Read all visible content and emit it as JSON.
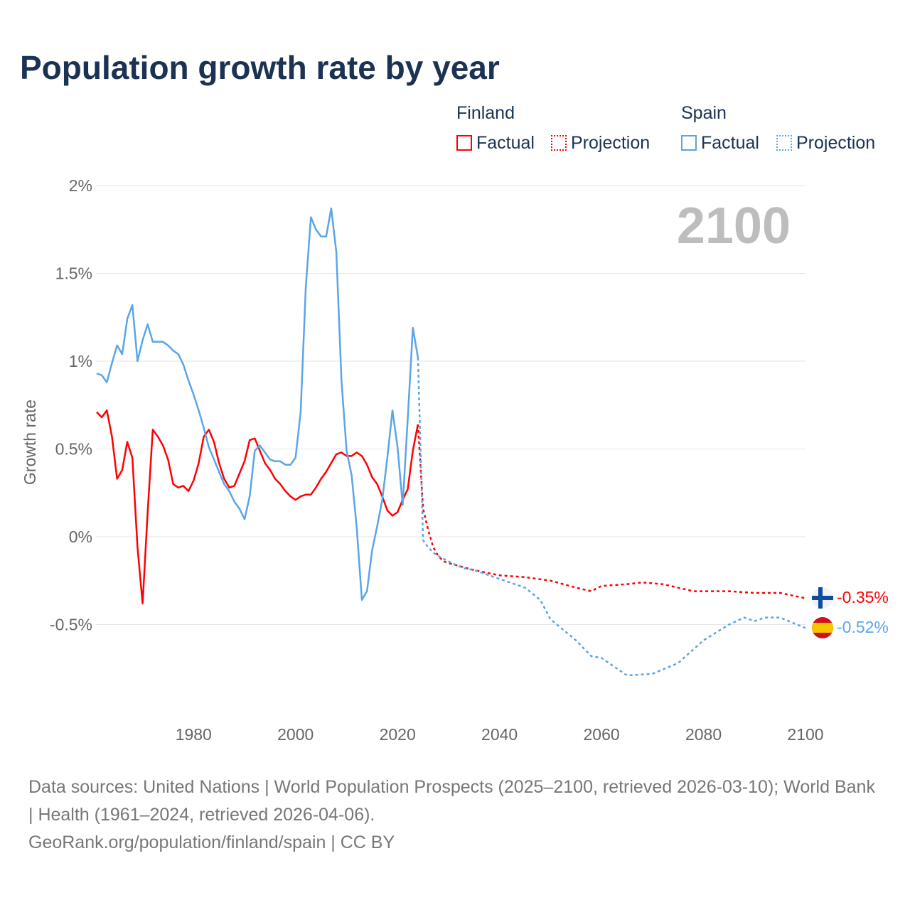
{
  "title": "Population growth rate by year",
  "legend": {
    "groups": [
      {
        "name": "Finland",
        "color": "#ff0000",
        "items": [
          "Factual",
          "Projection"
        ]
      },
      {
        "name": "Spain",
        "color": "#5aa5e8",
        "items": [
          "Factual",
          "Projection"
        ]
      }
    ]
  },
  "year_label": "2100",
  "end_labels": {
    "finland": "-0.35%",
    "spain": "-0.52%"
  },
  "footer": {
    "sources": "Data sources: United Nations | World Population Prospects (2025–2100, retrieved 2026-03-10); World Bank | Health (1961–2024, retrieved 2026-04-06).",
    "credit": "GeoRank.org/population/finland/spain | CC BY"
  },
  "chart_data": {
    "type": "line",
    "title": "Population growth rate by year",
    "ylabel": "Growth rate",
    "xlabel": "",
    "xlim": [
      1961,
      2100
    ],
    "ylim": [
      -0.95,
      2
    ],
    "xticks": [
      1980,
      2000,
      2020,
      2040,
      2060,
      2080,
      2100
    ],
    "yticks": [
      {
        "v": 2,
        "label": "2%"
      },
      {
        "v": 1.5,
        "label": "1.5%"
      },
      {
        "v": 1,
        "label": "1%"
      },
      {
        "v": 0.5,
        "label": "0.5%"
      },
      {
        "v": 0,
        "label": "0%"
      },
      {
        "v": -0.5,
        "label": "-0.5%"
      }
    ],
    "grid": true,
    "legend_position": "top-right",
    "series": [
      {
        "name": "Finland Factual",
        "color": "#ff0000",
        "dashed": false,
        "start": 1961,
        "values": [
          0.71,
          0.68,
          0.72,
          0.57,
          0.33,
          0.38,
          0.54,
          0.45,
          -0.06,
          -0.38,
          0.14,
          0.61,
          0.57,
          0.52,
          0.44,
          0.3,
          0.28,
          0.29,
          0.26,
          0.32,
          0.42,
          0.57,
          0.61,
          0.54,
          0.42,
          0.33,
          0.28,
          0.29,
          0.36,
          0.43,
          0.55,
          0.56,
          0.49,
          0.42,
          0.38,
          0.33,
          0.3,
          0.26,
          0.23,
          0.21,
          0.23,
          0.24,
          0.24,
          0.28,
          0.33,
          0.37,
          0.42,
          0.47,
          0.48,
          0.46,
          0.46,
          0.48,
          0.46,
          0.41,
          0.34,
          0.3,
          0.23,
          0.15,
          0.12,
          0.14,
          0.21,
          0.27,
          0.49,
          0.64
        ]
      },
      {
        "name": "Spain Factual",
        "color": "#5aa5e8",
        "dashed": false,
        "start": 1961,
        "values": [
          0.93,
          0.92,
          0.88,
          0.99,
          1.09,
          1.04,
          1.24,
          1.32,
          1.0,
          1.12,
          1.21,
          1.11,
          1.11,
          1.11,
          1.09,
          1.06,
          1.04,
          0.98,
          0.89,
          0.81,
          0.72,
          0.62,
          0.51,
          0.44,
          0.37,
          0.3,
          0.26,
          0.2,
          0.16,
          0.1,
          0.23,
          0.49,
          0.52,
          0.48,
          0.44,
          0.43,
          0.43,
          0.41,
          0.41,
          0.45,
          0.71,
          1.42,
          1.82,
          1.75,
          1.71,
          1.71,
          1.87,
          1.62,
          0.89,
          0.49,
          0.35,
          0.05,
          -0.36,
          -0.31,
          -0.08,
          0.06,
          0.21,
          0.45,
          0.72,
          0.51,
          0.18,
          0.67,
          1.19,
          1.02
        ]
      },
      {
        "name": "Finland Projection",
        "color": "#ff0000",
        "dashed": true,
        "points": [
          [
            2024,
            0.64
          ],
          [
            2025,
            0.16
          ],
          [
            2026,
            0.04
          ],
          [
            2027,
            -0.06
          ],
          [
            2028,
            -0.11
          ],
          [
            2029,
            -0.14
          ],
          [
            2030,
            -0.15
          ],
          [
            2035,
            -0.19
          ],
          [
            2040,
            -0.22
          ],
          [
            2045,
            -0.23
          ],
          [
            2050,
            -0.25
          ],
          [
            2055,
            -0.29
          ],
          [
            2058,
            -0.31
          ],
          [
            2060,
            -0.28
          ],
          [
            2065,
            -0.27
          ],
          [
            2068,
            -0.26
          ],
          [
            2072,
            -0.27
          ],
          [
            2078,
            -0.31
          ],
          [
            2085,
            -0.31
          ],
          [
            2090,
            -0.32
          ],
          [
            2095,
            -0.32
          ],
          [
            2100,
            -0.35
          ]
        ]
      },
      {
        "name": "Spain Projection",
        "color": "#5aa5e8",
        "dashed": true,
        "points": [
          [
            2024,
            1.02
          ],
          [
            2025,
            -0.02
          ],
          [
            2026,
            -0.06
          ],
          [
            2027,
            -0.09
          ],
          [
            2028,
            -0.11
          ],
          [
            2030,
            -0.14
          ],
          [
            2033,
            -0.18
          ],
          [
            2035,
            -0.19
          ],
          [
            2040,
            -0.24
          ],
          [
            2045,
            -0.29
          ],
          [
            2048,
            -0.36
          ],
          [
            2050,
            -0.47
          ],
          [
            2055,
            -0.59
          ],
          [
            2058,
            -0.68
          ],
          [
            2060,
            -0.69
          ],
          [
            2063,
            -0.75
          ],
          [
            2065,
            -0.79
          ],
          [
            2070,
            -0.78
          ],
          [
            2075,
            -0.72
          ],
          [
            2080,
            -0.59
          ],
          [
            2085,
            -0.5
          ],
          [
            2088,
            -0.46
          ],
          [
            2090,
            -0.48
          ],
          [
            2092,
            -0.46
          ],
          [
            2095,
            -0.46
          ],
          [
            2100,
            -0.52
          ]
        ]
      }
    ]
  }
}
